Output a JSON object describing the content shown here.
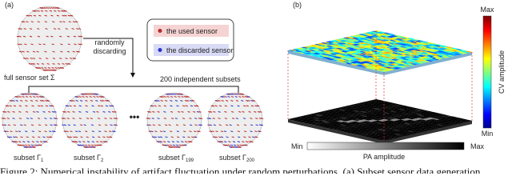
{
  "panel_a": {
    "label": "(a)",
    "arrow_text": [
      "randomly",
      "discarding"
    ],
    "legend": {
      "used": "the used sensor",
      "discarded": "the discarded sensor"
    },
    "full_set": "full sensor set Σ",
    "subsets_title": "200 independent subsets",
    "subsets": [
      {
        "label": "subset Γ",
        "sub": "1"
      },
      {
        "label": "subset Γ",
        "sub": "2"
      },
      {
        "label": "subset Γ",
        "sub": "199"
      },
      {
        "label": "subset Γ",
        "sub": "200"
      }
    ],
    "ellipsis": "•••"
  },
  "panel_b": {
    "label": "(b)",
    "cv_max": "Max",
    "cv_min": "Min",
    "cv_title": "CV amplitude",
    "pa_min": "Min",
    "pa_max": "Max",
    "pa_title": "PA amplitude"
  },
  "caption": "Figure 2: Numerical instability of artifact fluctuation under random perturbations. (a) Subset sensor data generation"
}
